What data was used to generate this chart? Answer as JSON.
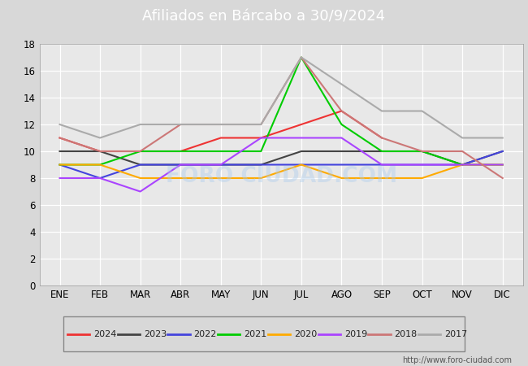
{
  "title": "Afiliados en Bárcabo a 30/9/2024",
  "months": [
    "ENE",
    "FEB",
    "MAR",
    "ABR",
    "MAY",
    "JUN",
    "JUL",
    "AGO",
    "SEP",
    "OCT",
    "NOV",
    "DIC"
  ],
  "ylim": [
    0,
    18
  ],
  "yticks": [
    0,
    2,
    4,
    6,
    8,
    10,
    12,
    14,
    16,
    18
  ],
  "series": [
    {
      "label": "2024",
      "color": "#ee3333",
      "data": [
        11,
        10,
        10,
        10,
        11,
        11,
        12,
        13,
        11,
        null,
        null,
        null
      ]
    },
    {
      "label": "2023",
      "color": "#444444",
      "data": [
        10,
        10,
        9,
        9,
        9,
        9,
        10,
        10,
        10,
        10,
        9,
        10
      ]
    },
    {
      "label": "2022",
      "color": "#4444dd",
      "data": [
        9,
        8,
        9,
        9,
        9,
        9,
        9,
        9,
        9,
        9,
        9,
        10
      ]
    },
    {
      "label": "2021",
      "color": "#00cc00",
      "data": [
        9,
        9,
        10,
        10,
        10,
        10,
        17,
        12,
        10,
        10,
        9,
        9
      ]
    },
    {
      "label": "2020",
      "color": "#ffaa00",
      "data": [
        9,
        9,
        8,
        8,
        8,
        8,
        9,
        8,
        8,
        8,
        9,
        9
      ]
    },
    {
      "label": "2019",
      "color": "#aa44ff",
      "data": [
        8,
        8,
        7,
        9,
        9,
        11,
        11,
        11,
        9,
        9,
        9,
        9
      ]
    },
    {
      "label": "2018",
      "color": "#cc7777",
      "data": [
        11,
        10,
        10,
        12,
        12,
        12,
        17,
        13,
        11,
        10,
        10,
        8
      ]
    },
    {
      "label": "2017",
      "color": "#aaaaaa",
      "data": [
        12,
        11,
        12,
        12,
        12,
        12,
        17,
        15,
        13,
        13,
        11,
        11
      ]
    }
  ],
  "url": "http://www.foro-ciudad.com",
  "header_color": "#5577aa",
  "plot_bg": "#e8e8e8",
  "fig_bg": "#d8d8d8",
  "grid_color": "#ffffff",
  "title_fontsize": 13,
  "tick_fontsize": 8.5,
  "linewidth": 1.5
}
